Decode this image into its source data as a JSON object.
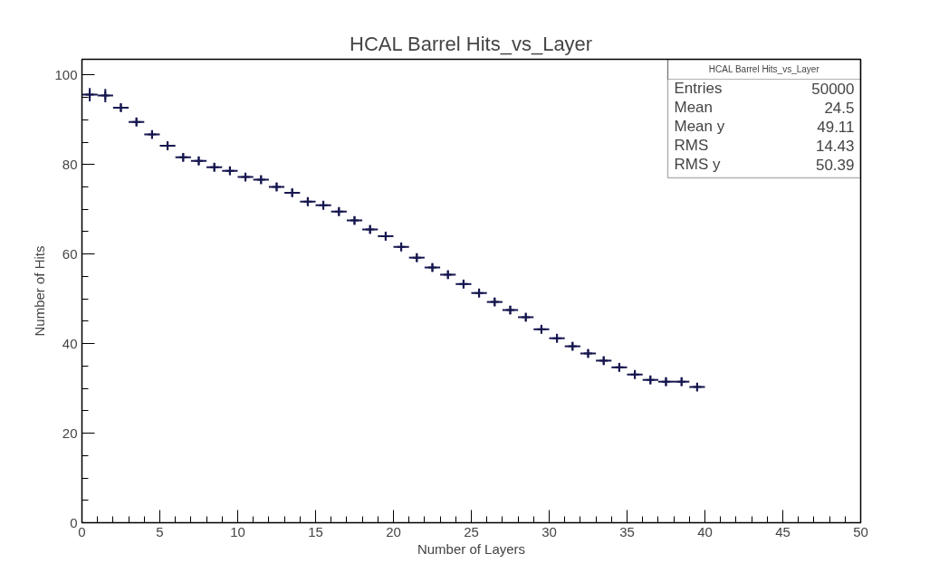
{
  "chart_data": {
    "type": "scatter",
    "title": "HCAL Barrel Hits_vs_Layer",
    "xlabel": "Number of Layers",
    "ylabel": "Number of Hits",
    "x": [
      0.5,
      1.5,
      2.5,
      3.5,
      4.5,
      5.5,
      6.5,
      7.5,
      8.5,
      9.5,
      10.5,
      11.5,
      12.5,
      13.5,
      14.5,
      15.5,
      16.5,
      17.5,
      18.5,
      19.5,
      20.5,
      21.5,
      22.5,
      23.5,
      24.5,
      25.5,
      26.5,
      27.5,
      28.5,
      29.5,
      30.5,
      31.5,
      32.5,
      33.5,
      34.5,
      35.5,
      36.5,
      37.5,
      38.5,
      39.5
    ],
    "series": [
      {
        "color": "#16164f",
        "values": [
          95.6,
          95.4,
          92.7,
          89.5,
          86.7,
          84.2,
          81.6,
          80.8,
          79.4,
          78.6,
          77.2,
          76.6,
          75.0,
          73.7,
          71.7,
          70.9,
          69.5,
          67.5,
          65.5,
          64.0,
          61.6,
          59.2,
          57.0,
          55.4,
          53.3,
          51.3,
          49.3,
          47.5,
          45.9,
          43.2,
          41.2,
          39.4,
          37.8,
          36.2,
          34.7,
          33.1,
          31.9,
          31.5,
          31.5,
          30.3
        ],
        "errors": [
          1.5,
          1.5,
          1,
          1,
          1,
          1,
          1,
          1,
          1,
          1,
          1,
          1,
          1,
          1,
          1,
          1,
          1,
          1,
          1,
          1,
          1,
          1,
          1,
          1,
          1,
          1,
          1,
          1,
          1,
          1,
          1,
          1,
          1,
          1,
          1,
          1,
          1,
          1,
          1,
          1
        ],
        "xerrors": [
          0.5,
          0.5,
          0.5,
          0.5,
          0.5,
          0.5,
          0.5,
          0.5,
          0.5,
          0.5,
          0.5,
          0.5,
          0.5,
          0.5,
          0.5,
          0.5,
          0.5,
          0.5,
          0.5,
          0.5,
          0.5,
          0.5,
          0.5,
          0.5,
          0.5,
          0.5,
          0.5,
          0.5,
          0.5,
          0.5,
          0.5,
          0.5,
          0.5,
          0.5,
          0.5,
          0.5,
          0.5,
          0.5,
          0.5,
          0.5
        ]
      }
    ],
    "xlim": [
      0,
      50
    ],
    "ylim": [
      0,
      103.5
    ],
    "xticks": [
      0,
      5,
      10,
      15,
      20,
      25,
      30,
      35,
      40,
      45,
      50
    ],
    "yticks": [
      0,
      20,
      40,
      60,
      80,
      100
    ],
    "marker": "cross",
    "grid": false,
    "annotations": [
      "HCAL Barrel Hits_vs_Layer",
      "Entries",
      "50000",
      "Mean",
      "24.5",
      "Mean y",
      "49.11",
      "RMS",
      "14.43",
      "RMS y",
      "50.39"
    ]
  }
}
